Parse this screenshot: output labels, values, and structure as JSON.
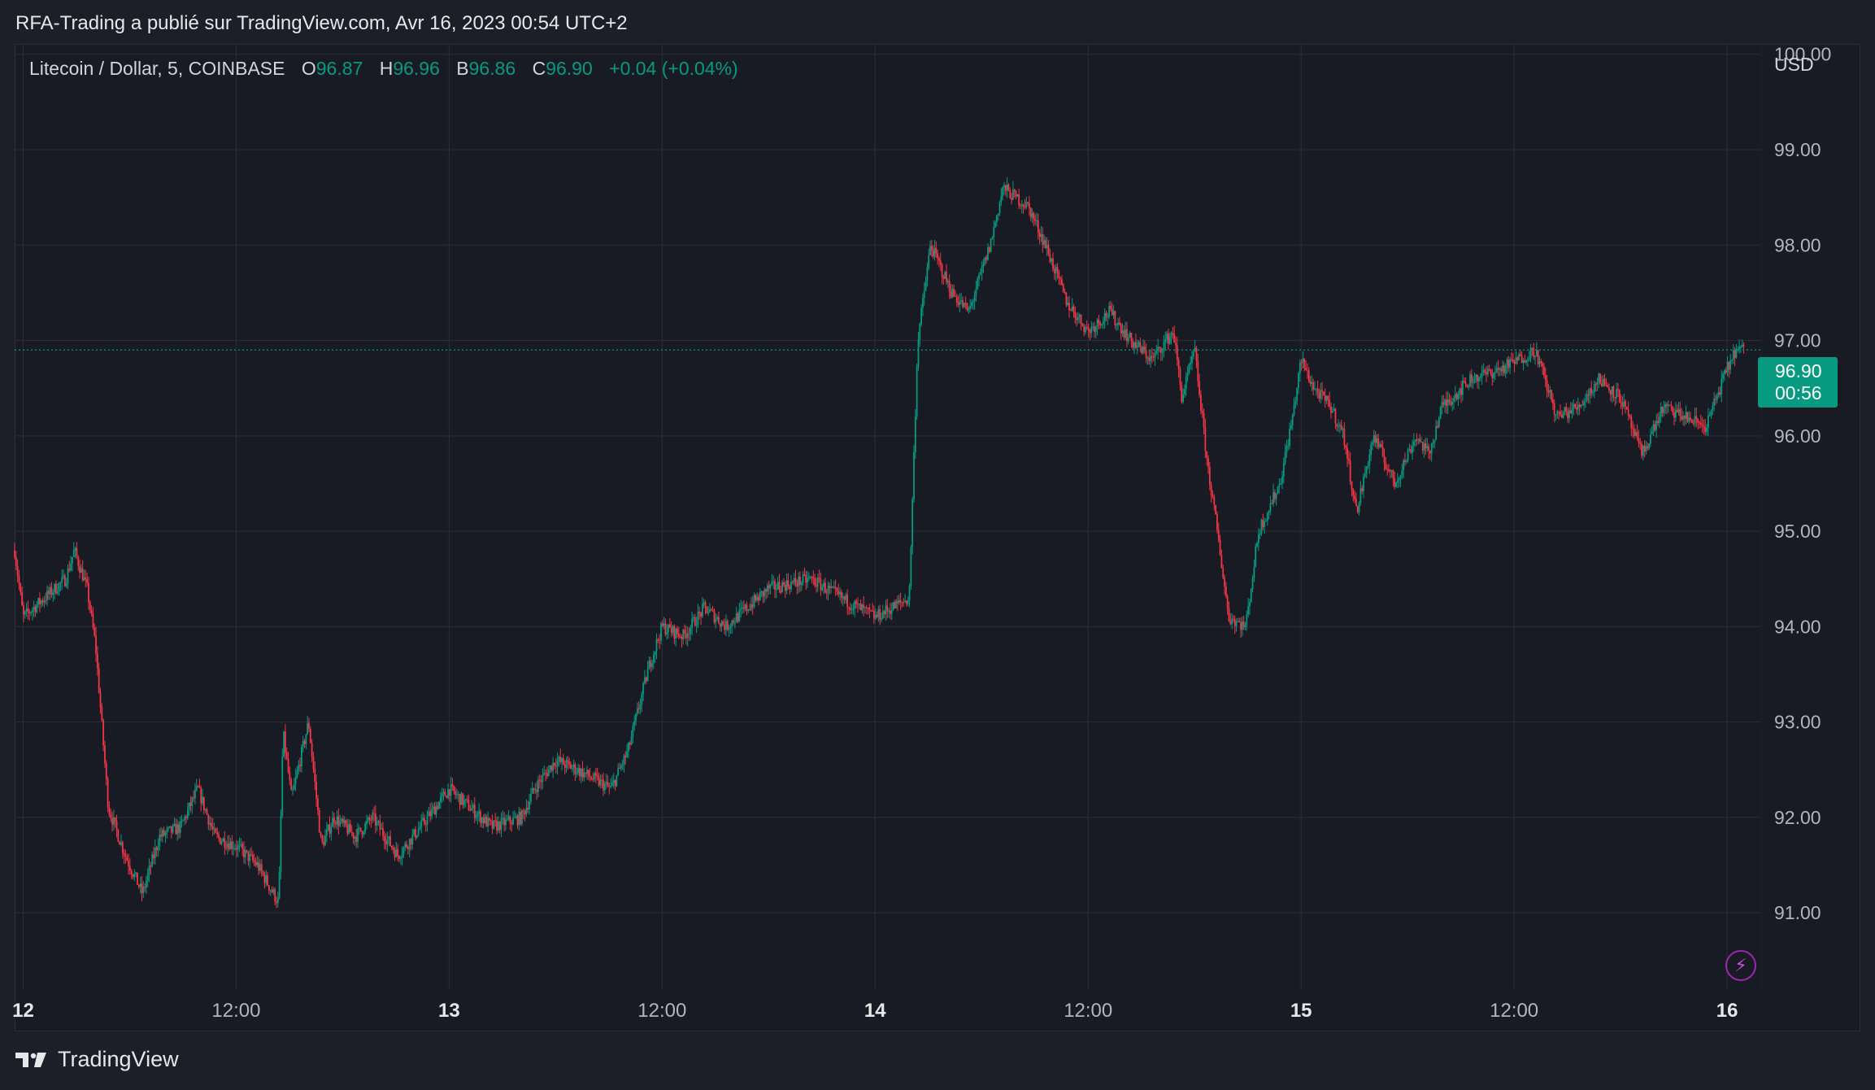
{
  "header": {
    "published_text": "RFA-Trading a publié sur TradingView.com, Avr 16, 2023 00:54 UTC+2"
  },
  "legend": {
    "symbol": "Litecoin / Dollar, 5, COINBASE",
    "open_label": "O",
    "open_value": "96.87",
    "high_label": "H",
    "high_value": "96.96",
    "low_label": "B",
    "low_value": "96.86",
    "close_label": "C",
    "close_value": "96.90",
    "change": "+0.04 (+0.04%)"
  },
  "price_axis": {
    "currency": "USD"
  },
  "last_price": {
    "price": "96.90",
    "countdown": "00:56"
  },
  "colors": {
    "up": "#089981",
    "down": "#f23645",
    "background": "#181b24",
    "grid": "#2a2e39",
    "axis_text": "#b2b5be"
  },
  "icons": {
    "alert": "bolt-icon",
    "brand": "tradingview-logo-icon"
  },
  "footer": {
    "brand": "TradingView"
  },
  "chart_data": {
    "type": "candlestick",
    "title": "Litecoin / Dollar, 5, COINBASE",
    "xlabel": "",
    "ylabel": "",
    "currency": "USD",
    "interval": "5",
    "exchange": "COINBASE",
    "x_range_days": [
      11.98,
      16.08
    ],
    "ylim": [
      90.2,
      100.1
    ],
    "y_ticks": [
      100.0,
      99.0,
      98.0,
      97.0,
      96.0,
      95.0,
      94.0,
      93.0,
      92.0,
      91.0
    ],
    "y_tick_labels": [
      "100.00",
      "99.00",
      "98.00",
      "97.00",
      "96.00",
      "95.00",
      "94.00",
      "93.00",
      "92.00",
      "91.00"
    ],
    "x_ticks": [
      {
        "day": 12.0,
        "label": "12",
        "bold": true
      },
      {
        "day": 12.5,
        "label": "12:00",
        "bold": false
      },
      {
        "day": 13.0,
        "label": "13",
        "bold": true
      },
      {
        "day": 13.5,
        "label": "12:00",
        "bold": false
      },
      {
        "day": 14.0,
        "label": "14",
        "bold": true
      },
      {
        "day": 14.5,
        "label": "12:00",
        "bold": false
      },
      {
        "day": 15.0,
        "label": "15",
        "bold": true
      },
      {
        "day": 15.5,
        "label": "12:00",
        "bold": false
      },
      {
        "day": 16.0,
        "label": "16",
        "bold": true
      }
    ],
    "last_price": 96.9,
    "grid": true,
    "price_path": [
      [
        11.98,
        94.8
      ],
      [
        12.0,
        94.1
      ],
      [
        12.05,
        94.3
      ],
      [
        12.1,
        94.5
      ],
      [
        12.12,
        94.8
      ],
      [
        12.15,
        94.4
      ],
      [
        12.17,
        93.8
      ],
      [
        12.2,
        92.1
      ],
      [
        12.24,
        91.6
      ],
      [
        12.28,
        91.2
      ],
      [
        12.32,
        91.8
      ],
      [
        12.37,
        91.9
      ],
      [
        12.41,
        92.3
      ],
      [
        12.45,
        91.8
      ],
      [
        12.5,
        91.7
      ],
      [
        12.55,
        91.5
      ],
      [
        12.6,
        91.1
      ],
      [
        12.61,
        92.9
      ],
      [
        12.63,
        92.2
      ],
      [
        12.67,
        93.0
      ],
      [
        12.7,
        91.7
      ],
      [
        12.73,
        92.0
      ],
      [
        12.78,
        91.8
      ],
      [
        12.82,
        92.0
      ],
      [
        12.88,
        91.6
      ],
      [
        12.95,
        92.0
      ],
      [
        13.0,
        92.3
      ],
      [
        13.05,
        92.1
      ],
      [
        13.1,
        91.9
      ],
      [
        13.17,
        92.0
      ],
      [
        13.2,
        92.3
      ],
      [
        13.25,
        92.6
      ],
      [
        13.3,
        92.5
      ],
      [
        13.38,
        92.3
      ],
      [
        13.42,
        92.7
      ],
      [
        13.47,
        93.6
      ],
      [
        13.5,
        94.0
      ],
      [
        13.55,
        93.9
      ],
      [
        13.6,
        94.2
      ],
      [
        13.65,
        94.0
      ],
      [
        13.75,
        94.4
      ],
      [
        13.85,
        94.5
      ],
      [
        13.92,
        94.3
      ],
      [
        14.0,
        94.1
      ],
      [
        14.08,
        94.3
      ],
      [
        14.1,
        97.0
      ],
      [
        14.13,
        98.0
      ],
      [
        14.18,
        97.5
      ],
      [
        14.22,
        97.3
      ],
      [
        14.27,
        98.0
      ],
      [
        14.3,
        98.6
      ],
      [
        14.36,
        98.4
      ],
      [
        14.4,
        98.0
      ],
      [
        14.45,
        97.4
      ],
      [
        14.5,
        97.1
      ],
      [
        14.55,
        97.3
      ],
      [
        14.6,
        97.0
      ],
      [
        14.65,
        96.8
      ],
      [
        14.7,
        97.1
      ],
      [
        14.72,
        96.4
      ],
      [
        14.75,
        96.9
      ],
      [
        14.78,
        95.7
      ],
      [
        14.8,
        95.1
      ],
      [
        14.83,
        94.1
      ],
      [
        14.87,
        94.0
      ],
      [
        14.9,
        95.0
      ],
      [
        14.95,
        95.5
      ],
      [
        14.98,
        96.2
      ],
      [
        15.0,
        96.8
      ],
      [
        15.03,
        96.5
      ],
      [
        15.07,
        96.3
      ],
      [
        15.1,
        96.0
      ],
      [
        15.13,
        95.2
      ],
      [
        15.17,
        96.0
      ],
      [
        15.22,
        95.5
      ],
      [
        15.27,
        96.0
      ],
      [
        15.3,
        95.8
      ],
      [
        15.33,
        96.3
      ],
      [
        15.4,
        96.6
      ],
      [
        15.47,
        96.7
      ],
      [
        15.55,
        96.9
      ],
      [
        15.6,
        96.2
      ],
      [
        15.65,
        96.3
      ],
      [
        15.7,
        96.6
      ],
      [
        15.75,
        96.4
      ],
      [
        15.8,
        95.8
      ],
      [
        15.85,
        96.3
      ],
      [
        15.9,
        96.2
      ],
      [
        15.95,
        96.1
      ],
      [
        16.0,
        96.7
      ],
      [
        16.02,
        96.9
      ],
      [
        16.04,
        96.9
      ]
    ]
  }
}
